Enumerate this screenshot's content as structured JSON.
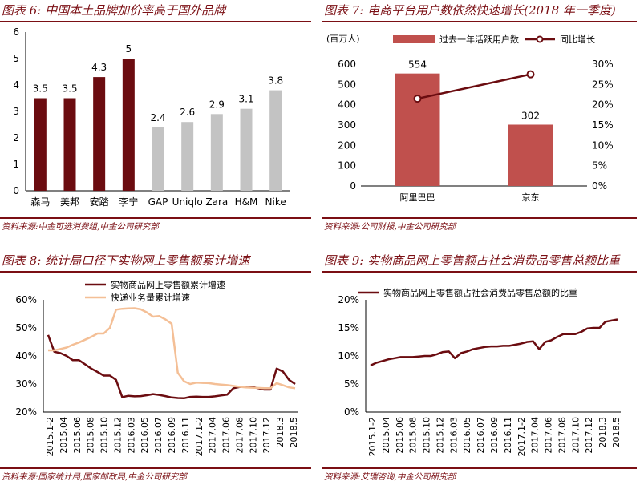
{
  "panels": [
    {
      "title": "图表 6: 中国本土品牌加价率高于国外品牌",
      "source": "资料来源:中金可选消费组,中金公司研究部"
    },
    {
      "title": "图表 7: 电商平台用户数依然快速增长(2018 年一季度)",
      "source": "资料来源:公司财报,中金公司研究部"
    },
    {
      "title": "图表 8: 统计局口径下实物网上零售额累计增速",
      "source": "资料来源:国家统计局,国家邮政局,中金公司研究部"
    },
    {
      "title": "图表 9: 实物商品网上零售额占社会消费品零售总额比重",
      "source": "资料来源:艾瑞咨询,中金公司研究部"
    }
  ],
  "colors": {
    "maroon": "#6b0c10",
    "grey": "#c3c3c3",
    "red_bar": "#c0504d",
    "orange": "#f4bf96",
    "title": "#7b0f14"
  },
  "chart_data": [
    {
      "type": "bar",
      "categories": [
        "森马",
        "美邦",
        "安踏",
        "李宁",
        "GAP",
        "Uniqlo",
        "Zara",
        "H&M",
        "Nike"
      ],
      "values": [
        3.5,
        3.5,
        4.3,
        5,
        2.4,
        2.6,
        2.9,
        3.1,
        3.8
      ],
      "value_labels": [
        "3.5",
        "3.5",
        "4.3",
        "5",
        "2.4",
        "2.6",
        "2.9",
        "3.1",
        "3.8"
      ],
      "bar_colors": [
        "maroon",
        "maroon",
        "maroon",
        "maroon",
        "grey",
        "grey",
        "grey",
        "grey",
        "grey"
      ],
      "ylim": [
        0,
        6
      ],
      "yticks": [
        "0",
        "1",
        "2",
        "3",
        "4",
        "5",
        "6"
      ],
      "grid": false
    },
    {
      "type": "bar",
      "categories": [
        "阿里巴巴",
        "京东"
      ],
      "unit_label": "(百万人)",
      "series": [
        {
          "name": "过去一年活跃用户数",
          "values": [
            554,
            302
          ],
          "value_labels": [
            "554",
            "302"
          ],
          "axis": "left"
        },
        {
          "name": "同比增长",
          "values": [
            21.5,
            27.5
          ],
          "axis": "right",
          "kind": "line"
        }
      ],
      "ylim_left": [
        0,
        600
      ],
      "ylim_right": [
        0,
        30
      ],
      "yticks_left": [
        "0",
        "100",
        "200",
        "300",
        "400",
        "500",
        "600"
      ],
      "yticks_right": [
        "0%",
        "5%",
        "10%",
        "15%",
        "20%",
        "25%",
        "30%"
      ],
      "legend": "top"
    },
    {
      "type": "line",
      "xticks": [
        "2015.1-2",
        "2015.04",
        "2015.06",
        "2015.08",
        "2015.10",
        "2015.12",
        "2016.03",
        "2016.05",
        "2016.07",
        "2016.09",
        "2016.11",
        "2017.1-2",
        "2017.04",
        "2017.06",
        "2017.08",
        "2017.10",
        "2017.12",
        "2018.3",
        "2018.5"
      ],
      "series": [
        {
          "name": "实物商品网上零售额累计增速",
          "color": "maroon",
          "values": [
            47.5,
            41.5,
            41,
            40,
            38.5,
            38.5,
            37,
            35.5,
            34.3,
            33,
            33,
            31.5,
            25.3,
            25.8,
            25.6,
            25.7,
            26,
            26.4,
            26.1,
            25.7,
            25.2,
            25,
            24.9,
            25.4,
            25.5,
            25.4,
            25.4,
            25.6,
            25.9,
            26.2,
            28.5,
            28.9,
            29.1,
            29.0,
            28.5,
            28.0,
            28.0,
            35.5,
            34.5,
            31.5,
            30.0
          ]
        },
        {
          "name": "快递业务量累计增速",
          "color": "orange",
          "values": [
            42,
            42,
            42.5,
            43,
            44,
            44.8,
            45.8,
            46.8,
            48,
            48,
            50,
            56.5,
            56.8,
            56.9,
            57.0,
            56.6,
            55.5,
            54.0,
            54.2,
            53,
            51.5,
            34,
            31,
            30,
            30.5,
            30.4,
            30.3,
            30.0,
            29.8,
            29.6,
            29.3,
            29.0,
            28.8,
            28.7,
            28.6,
            28.5,
            28.5,
            30.3,
            29.6,
            28.8,
            28.5
          ]
        }
      ],
      "ylim": [
        20,
        60
      ],
      "yticks": [
        "20%",
        "30%",
        "40%",
        "50%",
        "60%"
      ],
      "legend": "top-left"
    },
    {
      "type": "line",
      "xticks": [
        "2015.1-2",
        "2015.04",
        "2015.06",
        "2015.08",
        "2015.10",
        "2015.12",
        "2016.03",
        "2016.05",
        "2016.07",
        "2016.09",
        "2016.11",
        "2017.1-2",
        "2017.04",
        "2017.06",
        "2017.08",
        "2017.10",
        "2017.12",
        "2018.3",
        "2018.5"
      ],
      "series": [
        {
          "name": "实物商品网上零售额占社会消费品零售总额的比重",
          "color": "maroon",
          "values": [
            8.3,
            8.8,
            9.1,
            9.4,
            9.6,
            9.8,
            9.8,
            9.8,
            9.9,
            10.0,
            10.0,
            10.3,
            10.7,
            10.8,
            9.6,
            10.5,
            10.8,
            11.2,
            11.4,
            11.6,
            11.7,
            11.7,
            11.8,
            11.8,
            12.0,
            12.2,
            12.5,
            12.6,
            11.2,
            12.5,
            12.8,
            13.4,
            13.9,
            13.9,
            13.9,
            14.3,
            14.9,
            15.0,
            15.0,
            16.1,
            16.3,
            16.5
          ]
        }
      ],
      "ylim": [
        0,
        20
      ],
      "yticks": [
        "0%",
        "5%",
        "10%",
        "15%",
        "20%"
      ],
      "legend": "top-left"
    }
  ]
}
